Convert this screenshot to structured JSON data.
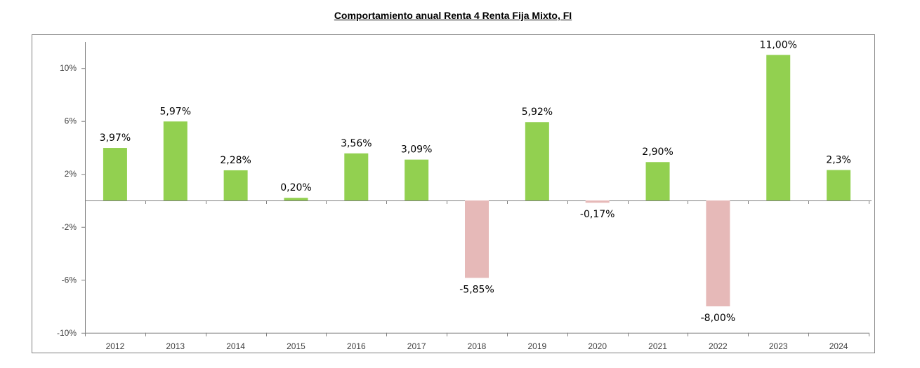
{
  "chart_data": {
    "type": "bar",
    "title": "Comportamiento anual Renta 4 Renta Fija Mixto, FI",
    "xlabel": "",
    "ylabel": "",
    "categories": [
      "2012",
      "2013",
      "2014",
      "2015",
      "2016",
      "2017",
      "2018",
      "2019",
      "2020",
      "2021",
      "2022",
      "2023",
      "2024"
    ],
    "values": [
      3.97,
      5.97,
      2.28,
      0.2,
      3.56,
      3.09,
      -5.85,
      5.92,
      -0.17,
      2.9,
      -8.0,
      11.0,
      2.3
    ],
    "value_labels": [
      "3,97%",
      "5,97%",
      "2,28%",
      "0,20%",
      "3,56%",
      "3,09%",
      "-5,85%",
      "5,92%",
      "-0,17%",
      "2,90%",
      "-8,00%",
      "11,00%",
      "2,3%"
    ],
    "ylim": [
      -10,
      12
    ],
    "yticks": [
      10,
      6,
      2,
      -2,
      -6,
      -10
    ],
    "ytick_labels": [
      "10%",
      "6%",
      "2%",
      "-2%",
      "-6%",
      "-10%"
    ],
    "grid": false,
    "legend": "none",
    "colors": {
      "positive": "#92d050",
      "negative": "#e6b9b8",
      "axis": "#7f7f7f",
      "frame": "#7f7f7f"
    }
  }
}
